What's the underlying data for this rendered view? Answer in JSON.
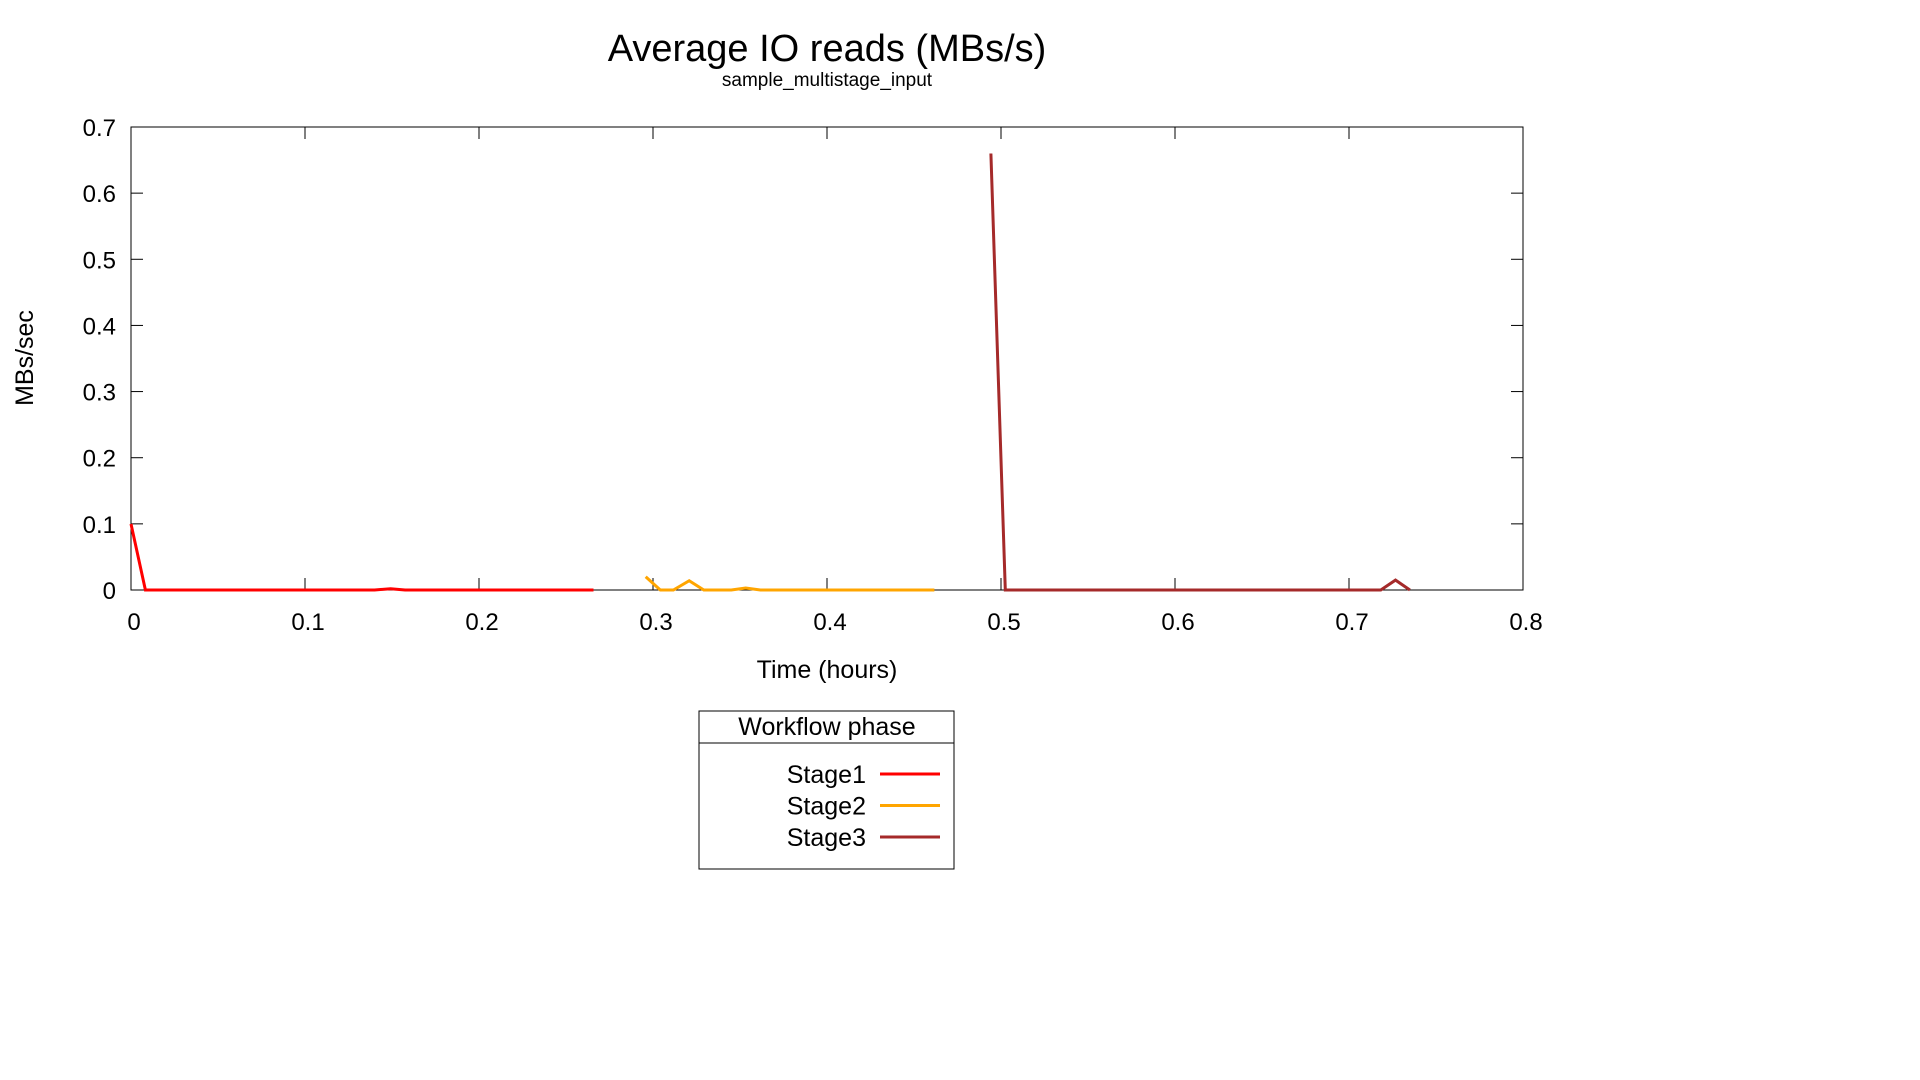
{
  "chart_data": {
    "type": "line",
    "title": "Average IO reads (MBs/s)",
    "subtitle": "sample_multistage_input",
    "xlabel": "Time (hours)",
    "ylabel": "MBs/sec",
    "xlim": [
      0,
      0.8
    ],
    "ylim": [
      0,
      0.7
    ],
    "x_ticks": [
      "0",
      "0.1",
      "0.2",
      "0.3",
      "0.4",
      "0.5",
      "0.6",
      "0.7",
      "0.8"
    ],
    "y_ticks": [
      "0",
      "0.1",
      "0.2",
      "0.3",
      "0.4",
      "0.5",
      "0.6",
      "0.7"
    ],
    "grid": false,
    "legend": {
      "title": "Workflow phase",
      "position": "bottom-center"
    },
    "series": [
      {
        "name": "Stage1",
        "color": "#ff0000",
        "x": [
          0.0,
          0.0083,
          0.14,
          0.1492,
          0.1575,
          0.2658
        ],
        "y": [
          0.1,
          0.0,
          0.0,
          0.002,
          0.0,
          0.0
        ]
      },
      {
        "name": "Stage2",
        "color": "#ffa500",
        "x": [
          0.2958,
          0.3042,
          0.3117,
          0.3208,
          0.3292,
          0.345,
          0.3533,
          0.3617,
          0.4617
        ],
        "y": [
          0.02,
          0.0,
          0.0,
          0.014,
          0.0,
          0.0,
          0.003,
          0.0,
          0.0
        ]
      },
      {
        "name": "Stage3",
        "color": "#a52a2a",
        "x": [
          0.4942,
          0.5025,
          0.7183,
          0.7267,
          0.735
        ],
        "y": [
          0.66,
          0.0,
          0.0,
          0.015,
          0.0
        ]
      }
    ]
  }
}
